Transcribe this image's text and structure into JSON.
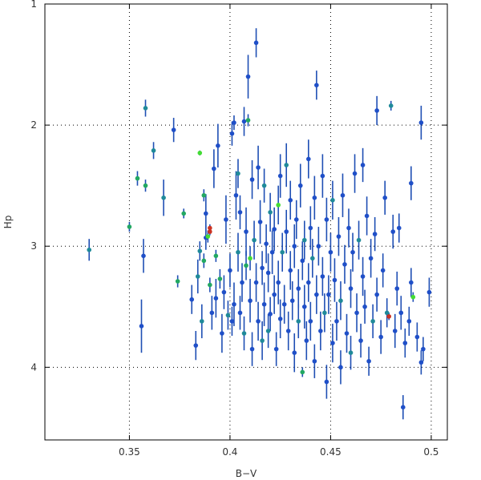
{
  "chart_data": {
    "type": "scatter",
    "title": "",
    "xlabel": "B−V",
    "ylabel": "Hp",
    "xlim": [
      0.308,
      0.508
    ],
    "ylim": [
      1.0,
      4.6
    ],
    "y_inverted": true,
    "grid": true,
    "xticks": [
      0.35,
      0.4,
      0.45,
      0.5
    ],
    "xtick_labels": [
      "0.35",
      "0.4",
      "0.45",
      "0.5"
    ],
    "yticks": [
      1,
      2,
      3,
      4
    ],
    "ytick_labels": [
      "1",
      "2",
      "3",
      "4"
    ],
    "colors": {
      "axis": "#000000",
      "grid": "#000000",
      "error_bar": "#1f4fb4",
      "blue": "#1f4fc8",
      "teal": "#1f8a99",
      "green": "#22a862",
      "lightgreen": "#44dd33",
      "red": "#cc3322"
    },
    "points": [
      {
        "x": 0.33,
        "y": 3.03,
        "err": 0.09,
        "c": "teal"
      },
      {
        "x": 0.35,
        "y": 2.84,
        "err": 0.04,
        "c": "green"
      },
      {
        "x": 0.354,
        "y": 2.44,
        "err": 0.06,
        "c": "green"
      },
      {
        "x": 0.356,
        "y": 3.66,
        "err": 0.22,
        "c": "blue"
      },
      {
        "x": 0.357,
        "y": 3.08,
        "err": 0.14,
        "c": "blue"
      },
      {
        "x": 0.358,
        "y": 2.5,
        "err": 0.05,
        "c": "green"
      },
      {
        "x": 0.358,
        "y": 1.86,
        "err": 0.07,
        "c": "teal"
      },
      {
        "x": 0.362,
        "y": 2.21,
        "err": 0.07,
        "c": "teal"
      },
      {
        "x": 0.367,
        "y": 2.6,
        "err": 0.15,
        "c": "teal"
      },
      {
        "x": 0.372,
        "y": 2.04,
        "err": 0.1,
        "c": "blue"
      },
      {
        "x": 0.374,
        "y": 3.29,
        "err": 0.05,
        "c": "green"
      },
      {
        "x": 0.377,
        "y": 2.73,
        "err": 0.04,
        "c": "green"
      },
      {
        "x": 0.381,
        "y": 3.44,
        "err": 0.12,
        "c": "blue"
      },
      {
        "x": 0.383,
        "y": 3.82,
        "err": 0.12,
        "c": "blue"
      },
      {
        "x": 0.384,
        "y": 3.25,
        "err": 0.14,
        "c": "teal"
      },
      {
        "x": 0.385,
        "y": 3.04,
        "err": 0.08,
        "c": "teal"
      },
      {
        "x": 0.385,
        "y": 2.23,
        "err": 0.02,
        "c": "lightgreen"
      },
      {
        "x": 0.386,
        "y": 3.62,
        "err": 0.14,
        "c": "teal"
      },
      {
        "x": 0.387,
        "y": 2.58,
        "err": 0.05,
        "c": "green"
      },
      {
        "x": 0.387,
        "y": 3.12,
        "err": 0.06,
        "c": "green"
      },
      {
        "x": 0.388,
        "y": 2.73,
        "err": 0.16,
        "c": "blue"
      },
      {
        "x": 0.388,
        "y": 2.93,
        "err": 0.1,
        "c": "blue"
      },
      {
        "x": 0.389,
        "y": 2.92,
        "err": 0.05,
        "c": "lightgreen"
      },
      {
        "x": 0.39,
        "y": 2.85,
        "err": 0.03,
        "c": "red"
      },
      {
        "x": 0.39,
        "y": 2.88,
        "err": 0.03,
        "c": "red"
      },
      {
        "x": 0.39,
        "y": 3.32,
        "err": 0.06,
        "c": "green"
      },
      {
        "x": 0.391,
        "y": 3.55,
        "err": 0.14,
        "c": "blue"
      },
      {
        "x": 0.392,
        "y": 2.36,
        "err": 0.16,
        "c": "blue"
      },
      {
        "x": 0.393,
        "y": 3.43,
        "err": 0.16,
        "c": "blue"
      },
      {
        "x": 0.393,
        "y": 3.08,
        "err": 0.05,
        "c": "green"
      },
      {
        "x": 0.394,
        "y": 2.17,
        "err": 0.18,
        "c": "blue"
      },
      {
        "x": 0.395,
        "y": 3.27,
        "err": 0.08,
        "c": "green"
      },
      {
        "x": 0.396,
        "y": 3.72,
        "err": 0.16,
        "c": "blue"
      },
      {
        "x": 0.397,
        "y": 3.38,
        "err": 0.14,
        "c": "blue"
      },
      {
        "x": 0.398,
        "y": 2.78,
        "err": 0.2,
        "c": "blue"
      },
      {
        "x": 0.399,
        "y": 3.57,
        "err": 0.12,
        "c": "teal"
      },
      {
        "x": 0.4,
        "y": 3.2,
        "err": 0.14,
        "c": "blue"
      },
      {
        "x": 0.401,
        "y": 2.07,
        "err": 0.1,
        "c": "blue"
      },
      {
        "x": 0.401,
        "y": 3.62,
        "err": 0.12,
        "c": "blue"
      },
      {
        "x": 0.402,
        "y": 1.98,
        "err": 0.06,
        "c": "blue"
      },
      {
        "x": 0.402,
        "y": 3.48,
        "err": 0.18,
        "c": "blue"
      },
      {
        "x": 0.403,
        "y": 2.58,
        "err": 0.2,
        "c": "blue"
      },
      {
        "x": 0.404,
        "y": 3.05,
        "err": 0.16,
        "c": "teal"
      },
      {
        "x": 0.404,
        "y": 2.4,
        "err": 0.12,
        "c": "teal"
      },
      {
        "x": 0.405,
        "y": 2.72,
        "err": 0.14,
        "c": "blue"
      },
      {
        "x": 0.405,
        "y": 3.55,
        "err": 0.14,
        "c": "blue"
      },
      {
        "x": 0.406,
        "y": 3.3,
        "err": 0.16,
        "c": "blue"
      },
      {
        "x": 0.407,
        "y": 3.72,
        "err": 0.14,
        "c": "teal"
      },
      {
        "x": 0.407,
        "y": 1.97,
        "err": 0.12,
        "c": "blue"
      },
      {
        "x": 0.408,
        "y": 2.88,
        "err": 0.2,
        "c": "blue"
      },
      {
        "x": 0.408,
        "y": 3.16,
        "err": 0.12,
        "c": "green"
      },
      {
        "x": 0.409,
        "y": 1.96,
        "err": 0.05,
        "c": "green"
      },
      {
        "x": 0.409,
        "y": 1.6,
        "err": 0.18,
        "c": "blue"
      },
      {
        "x": 0.41,
        "y": 3.45,
        "err": 0.18,
        "c": "blue"
      },
      {
        "x": 0.41,
        "y": 3.1,
        "err": 0.1,
        "c": "lightgreen"
      },
      {
        "x": 0.411,
        "y": 2.45,
        "err": 0.16,
        "c": "blue"
      },
      {
        "x": 0.411,
        "y": 3.85,
        "err": 0.14,
        "c": "blue"
      },
      {
        "x": 0.412,
        "y": 2.95,
        "err": 0.16,
        "c": "teal"
      },
      {
        "x": 0.413,
        "y": 1.32,
        "err": 0.12,
        "c": "blue"
      },
      {
        "x": 0.413,
        "y": 3.3,
        "err": 0.16,
        "c": "blue"
      },
      {
        "x": 0.414,
        "y": 2.35,
        "err": 0.18,
        "c": "blue"
      },
      {
        "x": 0.414,
        "y": 3.62,
        "err": 0.16,
        "c": "blue"
      },
      {
        "x": 0.415,
        "y": 2.8,
        "err": 0.18,
        "c": "blue"
      },
      {
        "x": 0.416,
        "y": 3.78,
        "err": 0.16,
        "c": "teal"
      },
      {
        "x": 0.416,
        "y": 3.18,
        "err": 0.14,
        "c": "blue"
      },
      {
        "x": 0.417,
        "y": 2.5,
        "err": 0.14,
        "c": "teal"
      },
      {
        "x": 0.417,
        "y": 3.48,
        "err": 0.18,
        "c": "blue"
      },
      {
        "x": 0.418,
        "y": 2.98,
        "err": 0.16,
        "c": "blue"
      },
      {
        "x": 0.419,
        "y": 3.7,
        "err": 0.14,
        "c": "teal"
      },
      {
        "x": 0.419,
        "y": 3.22,
        "err": 0.16,
        "c": "blue"
      },
      {
        "x": 0.42,
        "y": 2.72,
        "err": 0.16,
        "c": "teal"
      },
      {
        "x": 0.42,
        "y": 3.56,
        "err": 0.14,
        "c": "blue"
      },
      {
        "x": 0.421,
        "y": 3.05,
        "err": 0.18,
        "c": "blue"
      },
      {
        "x": 0.422,
        "y": 2.86,
        "err": 0.18,
        "c": "blue"
      },
      {
        "x": 0.422,
        "y": 3.4,
        "err": 0.16,
        "c": "blue"
      },
      {
        "x": 0.423,
        "y": 3.85,
        "err": 0.14,
        "c": "blue"
      },
      {
        "x": 0.424,
        "y": 2.66,
        "err": 0.16,
        "c": "lightgreen"
      },
      {
        "x": 0.424,
        "y": 3.3,
        "err": 0.18,
        "c": "blue"
      },
      {
        "x": 0.425,
        "y": 2.42,
        "err": 0.18,
        "c": "blue"
      },
      {
        "x": 0.425,
        "y": 3.6,
        "err": 0.16,
        "c": "blue"
      },
      {
        "x": 0.426,
        "y": 3.05,
        "err": 0.16,
        "c": "teal"
      },
      {
        "x": 0.427,
        "y": 3.48,
        "err": 0.16,
        "c": "blue"
      },
      {
        "x": 0.428,
        "y": 2.33,
        "err": 0.18,
        "c": "teal"
      },
      {
        "x": 0.428,
        "y": 2.88,
        "err": 0.18,
        "c": "blue"
      },
      {
        "x": 0.429,
        "y": 3.7,
        "err": 0.16,
        "c": "blue"
      },
      {
        "x": 0.43,
        "y": 3.2,
        "err": 0.16,
        "c": "blue"
      },
      {
        "x": 0.43,
        "y": 2.62,
        "err": 0.16,
        "c": "blue"
      },
      {
        "x": 0.431,
        "y": 3.45,
        "err": 0.16,
        "c": "blue"
      },
      {
        "x": 0.432,
        "y": 3.0,
        "err": 0.18,
        "c": "blue"
      },
      {
        "x": 0.432,
        "y": 3.88,
        "err": 0.16,
        "c": "blue"
      },
      {
        "x": 0.433,
        "y": 2.78,
        "err": 0.16,
        "c": "blue"
      },
      {
        "x": 0.434,
        "y": 3.35,
        "err": 0.16,
        "c": "blue"
      },
      {
        "x": 0.434,
        "y": 3.62,
        "err": 0.14,
        "c": "teal"
      },
      {
        "x": 0.435,
        "y": 2.5,
        "err": 0.18,
        "c": "blue"
      },
      {
        "x": 0.436,
        "y": 3.12,
        "err": 0.16,
        "c": "blue"
      },
      {
        "x": 0.436,
        "y": 4.04,
        "err": 0.04,
        "c": "green"
      },
      {
        "x": 0.437,
        "y": 3.5,
        "err": 0.18,
        "c": "blue"
      },
      {
        "x": 0.437,
        "y": 2.95,
        "err": 0.16,
        "c": "teal"
      },
      {
        "x": 0.438,
        "y": 3.78,
        "err": 0.16,
        "c": "blue"
      },
      {
        "x": 0.439,
        "y": 2.28,
        "err": 0.16,
        "c": "blue"
      },
      {
        "x": 0.439,
        "y": 3.3,
        "err": 0.16,
        "c": "blue"
      },
      {
        "x": 0.44,
        "y": 2.85,
        "err": 0.18,
        "c": "blue"
      },
      {
        "x": 0.44,
        "y": 3.62,
        "err": 0.16,
        "c": "blue"
      },
      {
        "x": 0.441,
        "y": 3.1,
        "err": 0.16,
        "c": "teal"
      },
      {
        "x": 0.442,
        "y": 3.95,
        "err": 0.14,
        "c": "blue"
      },
      {
        "x": 0.442,
        "y": 2.6,
        "err": 0.18,
        "c": "blue"
      },
      {
        "x": 0.443,
        "y": 1.67,
        "err": 0.12,
        "c": "blue"
      },
      {
        "x": 0.443,
        "y": 3.4,
        "err": 0.16,
        "c": "blue"
      },
      {
        "x": 0.444,
        "y": 3.0,
        "err": 0.16,
        "c": "blue"
      },
      {
        "x": 0.445,
        "y": 3.7,
        "err": 0.16,
        "c": "blue"
      },
      {
        "x": 0.446,
        "y": 2.42,
        "err": 0.18,
        "c": "blue"
      },
      {
        "x": 0.446,
        "y": 3.25,
        "err": 0.16,
        "c": "blue"
      },
      {
        "x": 0.447,
        "y": 3.55,
        "err": 0.16,
        "c": "teal"
      },
      {
        "x": 0.448,
        "y": 2.78,
        "err": 0.18,
        "c": "blue"
      },
      {
        "x": 0.448,
        "y": 4.12,
        "err": 0.14,
        "c": "blue"
      },
      {
        "x": 0.449,
        "y": 3.4,
        "err": 0.16,
        "c": "blue"
      },
      {
        "x": 0.45,
        "y": 3.05,
        "err": 0.16,
        "c": "blue"
      },
      {
        "x": 0.451,
        "y": 3.8,
        "err": 0.16,
        "c": "blue"
      },
      {
        "x": 0.451,
        "y": 2.62,
        "err": 0.16,
        "c": "teal"
      },
      {
        "x": 0.452,
        "y": 3.28,
        "err": 0.18,
        "c": "blue"
      },
      {
        "x": 0.453,
        "y": 3.62,
        "err": 0.16,
        "c": "blue"
      },
      {
        "x": 0.454,
        "y": 2.92,
        "err": 0.16,
        "c": "blue"
      },
      {
        "x": 0.455,
        "y": 3.45,
        "err": 0.16,
        "c": "teal"
      },
      {
        "x": 0.455,
        "y": 4.0,
        "err": 0.14,
        "c": "blue"
      },
      {
        "x": 0.456,
        "y": 2.58,
        "err": 0.18,
        "c": "blue"
      },
      {
        "x": 0.457,
        "y": 3.15,
        "err": 0.16,
        "c": "blue"
      },
      {
        "x": 0.458,
        "y": 3.72,
        "err": 0.16,
        "c": "blue"
      },
      {
        "x": 0.459,
        "y": 2.85,
        "err": 0.16,
        "c": "blue"
      },
      {
        "x": 0.46,
        "y": 3.35,
        "err": 0.16,
        "c": "blue"
      },
      {
        "x": 0.46,
        "y": 3.88,
        "err": 0.14,
        "c": "teal"
      },
      {
        "x": 0.461,
        "y": 3.05,
        "err": 0.16,
        "c": "blue"
      },
      {
        "x": 0.462,
        "y": 2.4,
        "err": 0.16,
        "c": "blue"
      },
      {
        "x": 0.463,
        "y": 3.55,
        "err": 0.16,
        "c": "blue"
      },
      {
        "x": 0.464,
        "y": 2.95,
        "err": 0.16,
        "c": "teal"
      },
      {
        "x": 0.465,
        "y": 3.78,
        "err": 0.14,
        "c": "blue"
      },
      {
        "x": 0.466,
        "y": 2.33,
        "err": 0.14,
        "c": "blue"
      },
      {
        "x": 0.466,
        "y": 3.25,
        "err": 0.16,
        "c": "blue"
      },
      {
        "x": 0.467,
        "y": 3.5,
        "err": 0.14,
        "c": "blue"
      },
      {
        "x": 0.468,
        "y": 2.75,
        "err": 0.16,
        "c": "blue"
      },
      {
        "x": 0.469,
        "y": 3.95,
        "err": 0.12,
        "c": "blue"
      },
      {
        "x": 0.47,
        "y": 3.1,
        "err": 0.16,
        "c": "blue"
      },
      {
        "x": 0.471,
        "y": 3.62,
        "err": 0.14,
        "c": "teal"
      },
      {
        "x": 0.472,
        "y": 2.9,
        "err": 0.14,
        "c": "blue"
      },
      {
        "x": 0.473,
        "y": 1.88,
        "err": 0.12,
        "c": "blue"
      },
      {
        "x": 0.473,
        "y": 3.4,
        "err": 0.14,
        "c": "blue"
      },
      {
        "x": 0.475,
        "y": 3.75,
        "err": 0.14,
        "c": "blue"
      },
      {
        "x": 0.476,
        "y": 3.2,
        "err": 0.14,
        "c": "blue"
      },
      {
        "x": 0.477,
        "y": 2.6,
        "err": 0.14,
        "c": "blue"
      },
      {
        "x": 0.478,
        "y": 3.55,
        "err": 0.12,
        "c": "teal"
      },
      {
        "x": 0.479,
        "y": 3.58,
        "err": 0.03,
        "c": "red"
      },
      {
        "x": 0.48,
        "y": 1.84,
        "err": 0.04,
        "c": "teal"
      },
      {
        "x": 0.481,
        "y": 2.88,
        "err": 0.14,
        "c": "blue"
      },
      {
        "x": 0.482,
        "y": 3.7,
        "err": 0.14,
        "c": "blue"
      },
      {
        "x": 0.483,
        "y": 3.35,
        "err": 0.14,
        "c": "blue"
      },
      {
        "x": 0.484,
        "y": 2.85,
        "err": 0.12,
        "c": "blue"
      },
      {
        "x": 0.485,
        "y": 3.55,
        "err": 0.14,
        "c": "blue"
      },
      {
        "x": 0.486,
        "y": 4.33,
        "err": 0.1,
        "c": "blue"
      },
      {
        "x": 0.487,
        "y": 3.8,
        "err": 0.12,
        "c": "blue"
      },
      {
        "x": 0.489,
        "y": 3.62,
        "err": 0.12,
        "c": "blue"
      },
      {
        "x": 0.49,
        "y": 2.48,
        "err": 0.14,
        "c": "blue"
      },
      {
        "x": 0.49,
        "y": 3.3,
        "err": 0.12,
        "c": "blue"
      },
      {
        "x": 0.491,
        "y": 3.42,
        "err": 0.04,
        "c": "lightgreen"
      },
      {
        "x": 0.493,
        "y": 3.75,
        "err": 0.12,
        "c": "blue"
      },
      {
        "x": 0.495,
        "y": 1.98,
        "err": 0.14,
        "c": "blue"
      },
      {
        "x": 0.495,
        "y": 3.96,
        "err": 0.1,
        "c": "blue"
      },
      {
        "x": 0.496,
        "y": 3.85,
        "err": 0.1,
        "c": "blue"
      },
      {
        "x": 0.499,
        "y": 3.38,
        "err": 0.12,
        "c": "blue"
      }
    ]
  }
}
